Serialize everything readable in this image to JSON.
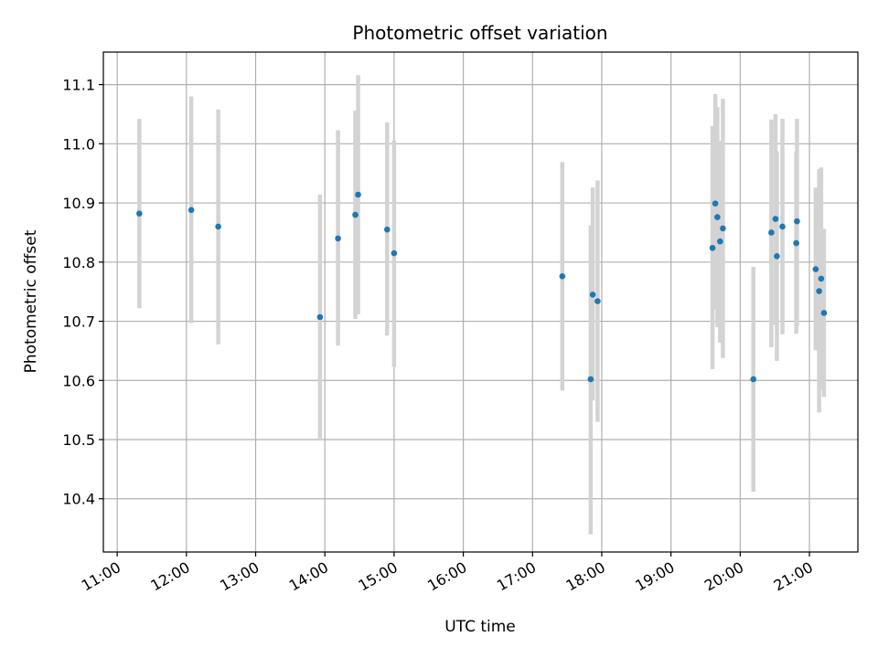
{
  "chart_data": {
    "type": "scatter",
    "title": "Photometric offset variation",
    "xlabel": "UTC time",
    "ylabel": "Photometric offset",
    "x_unit": "hours UTC",
    "xlim": [
      10.8,
      21.7
    ],
    "ylim": [
      10.31,
      11.155
    ],
    "x_ticks": [
      {
        "value": 11,
        "label": "11:00"
      },
      {
        "value": 12,
        "label": "12:00"
      },
      {
        "value": 13,
        "label": "13:00"
      },
      {
        "value": 14,
        "label": "14:00"
      },
      {
        "value": 15,
        "label": "15:00"
      },
      {
        "value": 16,
        "label": "16:00"
      },
      {
        "value": 17,
        "label": "17:00"
      },
      {
        "value": 18,
        "label": "18:00"
      },
      {
        "value": 19,
        "label": "19:00"
      },
      {
        "value": 20,
        "label": "20:00"
      },
      {
        "value": 21,
        "label": "21:00"
      }
    ],
    "y_ticks": [
      {
        "value": 10.4,
        "label": "10.4"
      },
      {
        "value": 10.5,
        "label": "10.5"
      },
      {
        "value": 10.6,
        "label": "10.6"
      },
      {
        "value": 10.7,
        "label": "10.7"
      },
      {
        "value": 10.8,
        "label": "10.8"
      },
      {
        "value": 10.9,
        "label": "10.9"
      },
      {
        "value": 11.0,
        "label": "11.0"
      },
      {
        "value": 11.1,
        "label": "11.1"
      }
    ],
    "grid": true,
    "point_color": "#1f77b4",
    "errorbar_color": "#d3d3d3",
    "points": [
      {
        "x": 11.32,
        "y": 10.882,
        "err_low": 10.722,
        "err_high": 11.042
      },
      {
        "x": 12.07,
        "y": 10.888,
        "err_low": 10.697,
        "err_high": 11.08
      },
      {
        "x": 12.46,
        "y": 10.86,
        "err_low": 10.661,
        "err_high": 11.058
      },
      {
        "x": 13.93,
        "y": 10.707,
        "err_low": 10.5,
        "err_high": 10.914
      },
      {
        "x": 14.19,
        "y": 10.84,
        "err_low": 10.659,
        "err_high": 11.023
      },
      {
        "x": 14.44,
        "y": 10.88,
        "err_low": 10.704,
        "err_high": 11.056
      },
      {
        "x": 14.48,
        "y": 10.914,
        "err_low": 10.712,
        "err_high": 11.116
      },
      {
        "x": 14.9,
        "y": 10.855,
        "err_low": 10.676,
        "err_high": 11.036
      },
      {
        "x": 15.0,
        "y": 10.815,
        "err_low": 10.623,
        "err_high": 11.006
      },
      {
        "x": 17.43,
        "y": 10.776,
        "err_low": 10.583,
        "err_high": 10.969
      },
      {
        "x": 17.84,
        "y": 10.602,
        "err_low": 10.34,
        "err_high": 10.862
      },
      {
        "x": 17.87,
        "y": 10.745,
        "err_low": 10.566,
        "err_high": 10.926
      },
      {
        "x": 17.94,
        "y": 10.734,
        "err_low": 10.53,
        "err_high": 10.938
      },
      {
        "x": 19.6,
        "y": 10.824,
        "err_low": 10.619,
        "err_high": 11.03
      },
      {
        "x": 19.64,
        "y": 10.899,
        "err_low": 10.72,
        "err_high": 11.084
      },
      {
        "x": 19.67,
        "y": 10.876,
        "err_low": 10.69,
        "err_high": 11.062
      },
      {
        "x": 19.71,
        "y": 10.835,
        "err_low": 10.664,
        "err_high": 11.005
      },
      {
        "x": 19.75,
        "y": 10.857,
        "err_low": 10.638,
        "err_high": 11.076
      },
      {
        "x": 20.19,
        "y": 10.602,
        "err_low": 10.412,
        "err_high": 10.792
      },
      {
        "x": 20.45,
        "y": 10.85,
        "err_low": 10.656,
        "err_high": 11.041
      },
      {
        "x": 20.51,
        "y": 10.873,
        "err_low": 10.694,
        "err_high": 11.05
      },
      {
        "x": 20.53,
        "y": 10.81,
        "err_low": 10.633,
        "err_high": 10.987
      },
      {
        "x": 20.61,
        "y": 10.86,
        "err_low": 10.678,
        "err_high": 11.042
      },
      {
        "x": 20.81,
        "y": 10.832,
        "err_low": 10.679,
        "err_high": 10.986
      },
      {
        "x": 20.82,
        "y": 10.869,
        "err_low": 10.692,
        "err_high": 11.042
      },
      {
        "x": 21.09,
        "y": 10.788,
        "err_low": 10.651,
        "err_high": 10.926
      },
      {
        "x": 21.14,
        "y": 10.751,
        "err_low": 10.546,
        "err_high": 10.957
      },
      {
        "x": 21.17,
        "y": 10.772,
        "err_low": 10.584,
        "err_high": 10.96
      },
      {
        "x": 21.21,
        "y": 10.714,
        "err_low": 10.572,
        "err_high": 10.856
      }
    ]
  }
}
